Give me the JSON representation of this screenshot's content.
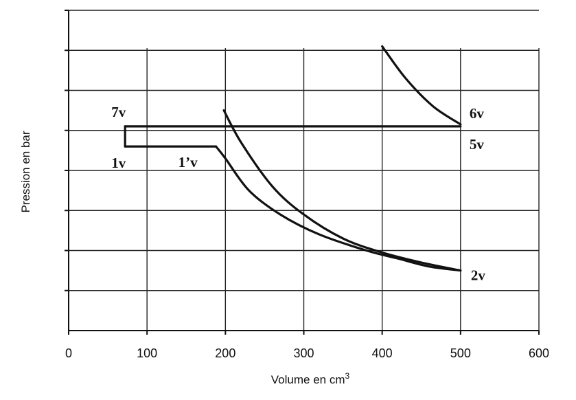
{
  "chart_data": {
    "type": "line",
    "title": "",
    "xlabel": "Volume en cm",
    "xlabel_sup": "3",
    "ylabel": "Pression en bar",
    "xlim": [
      0,
      600
    ],
    "ylim": [
      0,
      8
    ],
    "x_ticks": [
      0,
      100,
      200,
      300,
      400,
      500,
      600
    ],
    "y_ticks_labeled": false,
    "grid": true,
    "series": [
      {
        "x": [
          72,
          500
        ],
        "y": [
          5.1,
          5.1
        ]
      },
      {
        "x": [
          72,
          72
        ],
        "y": [
          5.1,
          4.6
        ]
      },
      {
        "x": [
          72,
          188
        ],
        "y": [
          4.6,
          4.6
        ]
      },
      {
        "x": [
          188,
          200,
          230,
          270,
          320,
          380,
          420,
          460,
          500
        ],
        "y": [
          4.6,
          4.3,
          3.5,
          2.9,
          2.4,
          2.0,
          1.8,
          1.6,
          1.5
        ]
      },
      {
        "x": [
          198,
          220,
          260,
          300,
          350,
          400,
          450,
          500
        ],
        "y": [
          5.5,
          4.7,
          3.6,
          2.9,
          2.3,
          1.95,
          1.7,
          1.5
        ]
      },
      {
        "x": [
          400,
          430,
          465,
          500
        ],
        "y": [
          7.1,
          6.3,
          5.6,
          5.15
        ]
      }
    ],
    "annotations": [
      {
        "text": "7v",
        "x": 72,
        "y": 5.1
      },
      {
        "text": "6v",
        "x": 500,
        "y": 5.1
      },
      {
        "text": "5v",
        "x": 500,
        "y": 5.1
      },
      {
        "text": "1v",
        "x": 72,
        "y": 4.6
      },
      {
        "text": "1’v",
        "x": 188,
        "y": 4.6
      },
      {
        "text": "2v",
        "x": 500,
        "y": 1.5
      }
    ]
  }
}
